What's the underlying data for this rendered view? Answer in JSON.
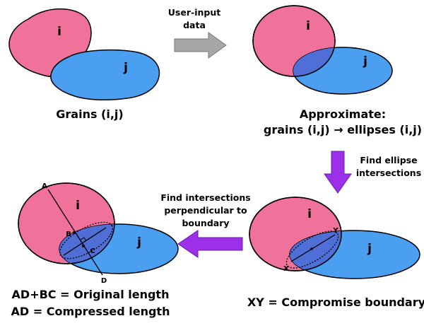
{
  "panels": {
    "raw_grains": {
      "label_i": "i",
      "label_j": "j",
      "caption": "Grains (i,j)"
    },
    "approximate": {
      "label_i": "i",
      "label_j": "j",
      "caption_line1": "Approximate:",
      "caption_line2": "grains (i,j) → ellipses (i,j)"
    },
    "compromise": {
      "label_i": "i",
      "label_j": "j",
      "point_x": "X",
      "point_y": "Y",
      "caption": "XY = Compromise boundary"
    },
    "lengths": {
      "label_i": "i",
      "label_j": "j",
      "point_a": "A",
      "point_b": "B",
      "point_c": "C",
      "point_d": "D",
      "caption_line1": "AD+BC = Original length",
      "caption_line2": "AD = Compressed length"
    }
  },
  "arrows": {
    "user_input": {
      "line1": "User-input",
      "line2": "data",
      "color": "#a6a6a6"
    },
    "find_ellipse": {
      "line1": "Find ellipse",
      "line2": "intersections",
      "color": "#9b30e8"
    },
    "find_perp": {
      "line1": "Find intersections",
      "line2": "perpendicular to",
      "line3": "boundary",
      "color": "#9b30e8"
    }
  },
  "colors": {
    "grain_i": "#f0729b",
    "grain_j": "#4a9ff0",
    "overlap": "#4f6fd6",
    "outline": "#000000"
  }
}
